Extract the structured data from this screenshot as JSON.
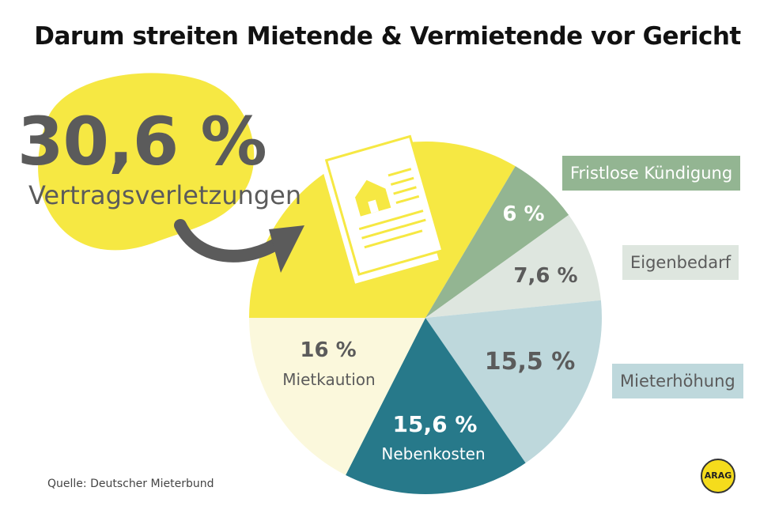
{
  "title": "Darum streiten Mietende & Vermietende vor Gericht",
  "highlight": {
    "value": "30,6 %",
    "label": "Vertragsverletzungen"
  },
  "source": "Quelle: Deutscher Mieterbund",
  "logo_text": "ARAG",
  "chart_data": {
    "type": "pie",
    "title": "Darum streiten Mietende & Vermietende vor Gericht",
    "slices": [
      {
        "label": "Vertragsverletzungen",
        "value": 30.6,
        "display": "30,6 %",
        "color": "#f6e843"
      },
      {
        "label": "Fristlose Kündigung",
        "value": 6,
        "display": "6 %",
        "color": "#93b592"
      },
      {
        "label": "Eigenbedarf",
        "value": 7.6,
        "display": "7,6 %",
        "color": "#dee6df"
      },
      {
        "label": "Mieterhöhung",
        "value": 15.5,
        "display": "15,5 %",
        "color": "#bed8dc"
      },
      {
        "label": "Nebenkosten",
        "value": 15.6,
        "display": "15,6 %",
        "color": "#27798a"
      },
      {
        "label": "Mietkaution",
        "value": 16,
        "display": "16 %",
        "color": "#fbf8dc"
      }
    ],
    "legend": [
      "Fristlose Kündigung",
      "Eigenbedarf",
      "Mieterhöhung"
    ]
  }
}
